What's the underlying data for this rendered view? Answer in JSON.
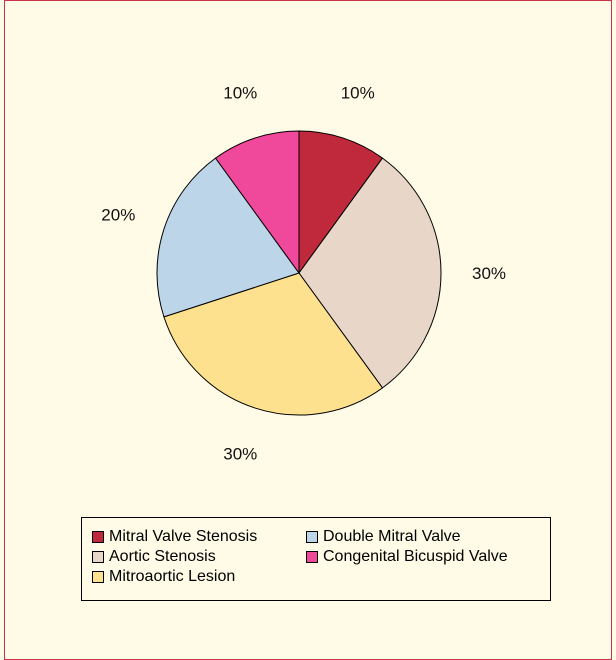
{
  "chart_data": {
    "type": "pie",
    "slices": [
      {
        "label": "Mitral Valve Stenosis",
        "value": 10,
        "display": "10%",
        "color": "#c0283b"
      },
      {
        "label": "Aortic Stenosis",
        "value": 30,
        "display": "30%",
        "color": "#e8d7c9"
      },
      {
        "label": "Mitroaortic Lesion",
        "value": 30,
        "display": "30%",
        "color": "#fde18e"
      },
      {
        "label": "Double Mitral Valve",
        "value": 20,
        "display": "20%",
        "color": "#bcd5e8"
      },
      {
        "label": "Congenital Bicuspid Valve",
        "value": 10,
        "display": "10%",
        "color": "#f0489a"
      }
    ],
    "legend": {
      "position": "bottom",
      "items": [
        {
          "label": "Mitral Valve Stenosis",
          "color": "#c0283b"
        },
        {
          "label": "Double Mitral Valve",
          "color": "#bcd5e8"
        },
        {
          "label": "Aortic Stenosis",
          "color": "#e8d7c9"
        },
        {
          "label": "Congenital Bicuspid Valve",
          "color": "#f0489a"
        },
        {
          "label": "Mitroaortic Lesion",
          "color": "#fde18e"
        }
      ]
    }
  },
  "colors": {
    "background": "#fffbe6",
    "frame_border": "#c8334a"
  }
}
